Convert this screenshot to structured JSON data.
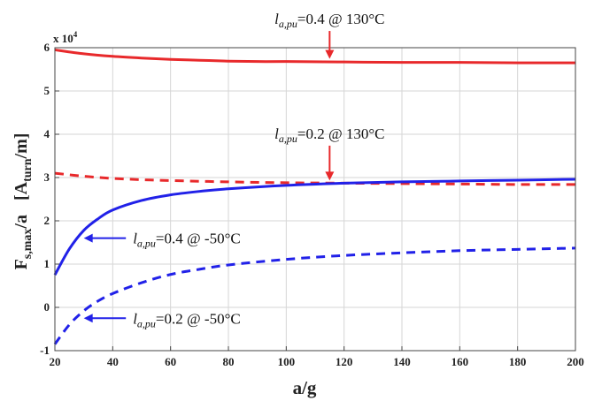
{
  "chart_data": {
    "type": "line",
    "xlabel": "a/g",
    "ylabel_main": "F",
    "ylabel_sub": "s,max",
    "ylabel_mid": "/a",
    "ylabel_unit_open": "[A",
    "ylabel_unit_sub": "turn",
    "ylabel_unit_close": "/m]",
    "y_multiplier_base": "x 10",
    "y_multiplier_exp": "4",
    "xlim": [
      20,
      200
    ],
    "ylim": [
      -1,
      6
    ],
    "xticks": [
      "20",
      "40",
      "60",
      "80",
      "100",
      "120",
      "140",
      "160",
      "180",
      "200"
    ],
    "yticks": [
      "-1",
      "0",
      "1",
      "2",
      "3",
      "4",
      "5",
      "6"
    ],
    "grid": true,
    "series": [
      {
        "color": "#e8292b",
        "style": "solid",
        "x": [
          20,
          30,
          40,
          50,
          60,
          70,
          80,
          90,
          100,
          120,
          140,
          160,
          180,
          200
        ],
        "y": [
          5.95,
          5.86,
          5.8,
          5.76,
          5.73,
          5.71,
          5.69,
          5.68,
          5.68,
          5.67,
          5.66,
          5.66,
          5.65,
          5.65
        ]
      },
      {
        "color": "#e8292b",
        "style": "dashed",
        "x": [
          20,
          30,
          40,
          50,
          60,
          80,
          100,
          120,
          140,
          160,
          180,
          200
        ],
        "y": [
          3.1,
          3.03,
          2.98,
          2.95,
          2.93,
          2.9,
          2.88,
          2.87,
          2.86,
          2.85,
          2.84,
          2.84
        ]
      },
      {
        "color": "#2121e8",
        "style": "solid",
        "x": [
          20,
          25,
          30,
          35,
          40,
          50,
          60,
          70,
          80,
          100,
          120,
          140,
          160,
          180,
          200
        ],
        "y": [
          0.75,
          1.35,
          1.78,
          2.05,
          2.25,
          2.47,
          2.6,
          2.68,
          2.74,
          2.82,
          2.87,
          2.9,
          2.92,
          2.94,
          2.96
        ]
      },
      {
        "color": "#2121e8",
        "style": "dashed",
        "x": [
          20,
          25,
          30,
          35,
          40,
          50,
          60,
          70,
          80,
          100,
          120,
          140,
          160,
          180,
          200
        ],
        "y": [
          -0.85,
          -0.4,
          -0.08,
          0.15,
          0.32,
          0.57,
          0.76,
          0.88,
          0.98,
          1.11,
          1.2,
          1.26,
          1.31,
          1.34,
          1.37
        ]
      }
    ],
    "annotations": [
      {
        "var": "l",
        "sub": "a,pu",
        "text": "=0.4 @ 130°C",
        "color": "#e8292b",
        "arrow": "down",
        "target_x": 115,
        "target_y": 5.68,
        "label_x": 115,
        "label_y": 6.55
      },
      {
        "var": "l",
        "sub": "a,pu",
        "text": "=0.2 @ 130°C",
        "color": "#e8292b",
        "arrow": "down",
        "target_x": 115,
        "target_y": 2.87,
        "label_x": 115,
        "label_y": 3.9
      },
      {
        "var": "l",
        "sub": "a,pu",
        "text": "=0.4 @ -50°C",
        "color": "#2121e8",
        "arrow": "left",
        "target_x": 30,
        "target_y": 1.6,
        "label_x": 47,
        "label_y": 1.6
      },
      {
        "var": "l",
        "sub": "a,pu",
        "text": "=0.2 @ -50°C",
        "color": "#2121e8",
        "arrow": "left",
        "target_x": 30,
        "target_y": -0.25,
        "label_x": 47,
        "label_y": -0.25
      }
    ]
  }
}
